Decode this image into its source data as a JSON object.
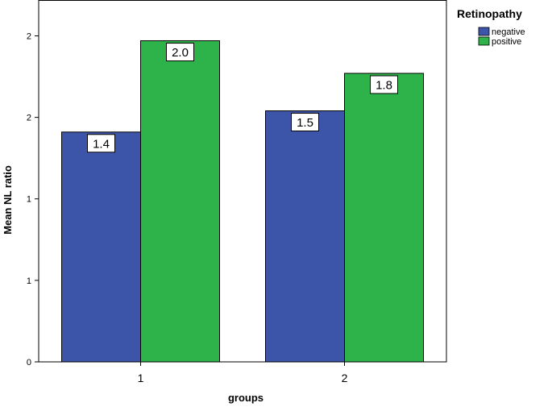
{
  "chart_data": {
    "type": "bar",
    "xlabel": "groups",
    "ylabel": "Mean NL ratio",
    "categories": [
      "1",
      "2"
    ],
    "series": [
      {
        "name": "negative",
        "color": "#3d55a8",
        "values": [
          1.41,
          1.54
        ],
        "labels": [
          "1.4",
          "1.5"
        ]
      },
      {
        "name": "positive",
        "color": "#2db34a",
        "values": [
          1.97,
          1.77
        ],
        "labels": [
          "2.0",
          "1.8"
        ]
      }
    ],
    "yticks": [
      {
        "value": 0,
        "label": "0"
      },
      {
        "value": 0.5,
        "label": "1"
      },
      {
        "value": 1.0,
        "label": "1"
      },
      {
        "value": 1.5,
        "label": "2"
      },
      {
        "value": 2.0,
        "label": "2"
      }
    ],
    "ylim": [
      0,
      2.22
    ],
    "grid": false,
    "legend": {
      "title": "Retinopathy",
      "position": "top-right"
    }
  }
}
